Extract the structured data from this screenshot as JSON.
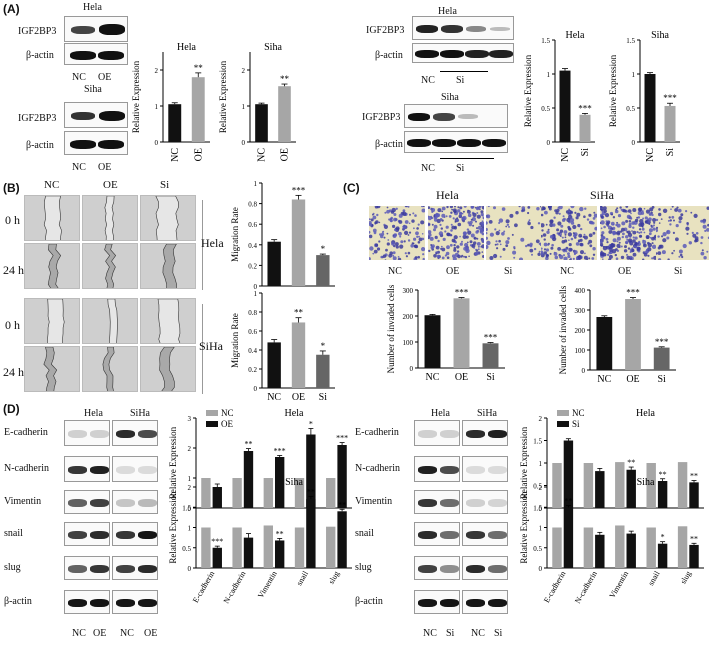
{
  "panels": {
    "A": {
      "label": "(A)",
      "hela": "Hela",
      "siha": "Siha",
      "rows": [
        "IGF2BP3",
        "β-actin"
      ],
      "oe_lanes": [
        "NC",
        "OE"
      ],
      "si_lanes": [
        "NC",
        "Si"
      ]
    },
    "B": {
      "label": "(B)",
      "cols": [
        "NC",
        "OE",
        "Si"
      ],
      "rows": [
        "0 h",
        "24 h"
      ],
      "cells": [
        "Hela",
        "SiHa"
      ]
    },
    "C": {
      "label": "(C)",
      "cells": [
        "Hela",
        "SiHa"
      ],
      "cols": [
        "NC",
        "OE",
        "Si"
      ]
    },
    "D": {
      "label": "(D)",
      "cells": [
        "Hela",
        "SiHa"
      ],
      "rows": [
        "E-cadherin",
        "N-cadherin",
        "Vimentin",
        "snail",
        "slug",
        "β-actin"
      ],
      "oe_lanes": [
        "NC",
        "OE"
      ],
      "si_lanes": [
        "NC",
        "Si"
      ]
    }
  },
  "chart_data": [
    {
      "id": "A-hela-oe",
      "type": "bar",
      "title": "Hela",
      "ylabel": "Relative Expression",
      "categories": [
        "NC",
        "OE"
      ],
      "values": [
        1.05,
        1.8
      ],
      "errors": [
        0.04,
        0.12
      ],
      "sig": [
        "",
        "**"
      ],
      "ylim": [
        0,
        2.5
      ],
      "colors": [
        "#111111",
        "#a6a6a6"
      ]
    },
    {
      "id": "A-siha-oe",
      "type": "bar",
      "title": "Siha",
      "ylabel": "Relative Expression",
      "categories": [
        "NC",
        "OE"
      ],
      "values": [
        1.05,
        1.55
      ],
      "errors": [
        0.03,
        0.06
      ],
      "sig": [
        "",
        "**"
      ],
      "ylim": [
        0,
        2.5
      ],
      "colors": [
        "#111111",
        "#a6a6a6"
      ]
    },
    {
      "id": "A-hela-si",
      "type": "bar",
      "title": "Hela",
      "ylabel": "Relative Expression",
      "categories": [
        "NC",
        "Si"
      ],
      "values": [
        1.05,
        0.4
      ],
      "errors": [
        0.03,
        0.02
      ],
      "sig": [
        "",
        "***"
      ],
      "ylim": [
        0,
        1.5
      ],
      "colors": [
        "#111111",
        "#a6a6a6"
      ]
    },
    {
      "id": "A-siha-si",
      "type": "bar",
      "title": "Siha",
      "ylabel": "Relative Expression",
      "categories": [
        "NC",
        "Si"
      ],
      "values": [
        1.0,
        0.53
      ],
      "errors": [
        0.02,
        0.04
      ],
      "sig": [
        "",
        "***"
      ],
      "ylim": [
        0,
        1.5
      ],
      "colors": [
        "#111111",
        "#a6a6a6"
      ]
    },
    {
      "id": "B-hela",
      "type": "bar",
      "title": "",
      "ylabel": "Migration Rate",
      "categories": [
        "NC",
        "OE",
        "Si"
      ],
      "values": [
        0.43,
        0.84,
        0.3
      ],
      "errors": [
        0.02,
        0.04,
        0.01
      ],
      "sig": [
        "",
        "***",
        "*"
      ],
      "ylim": [
        0,
        1.0
      ],
      "yticks": [
        0.0,
        0.2,
        0.4,
        0.6,
        0.8,
        1.0
      ],
      "xticks": false,
      "colors": [
        "#111111",
        "#a6a6a6",
        "#666666"
      ]
    },
    {
      "id": "B-siha",
      "type": "bar",
      "title": "",
      "ylabel": "Migration Rate",
      "categories": [
        "NC",
        "OE",
        "Si"
      ],
      "values": [
        0.48,
        0.69,
        0.35
      ],
      "errors": [
        0.03,
        0.05,
        0.04
      ],
      "sig": [
        "",
        "**",
        "*"
      ],
      "ylim": [
        0,
        1.0
      ],
      "yticks": [
        0.0,
        0.2,
        0.4,
        0.6,
        0.8,
        1.0
      ],
      "xticks": true,
      "colors": [
        "#111111",
        "#a6a6a6",
        "#666666"
      ]
    },
    {
      "id": "C-hela",
      "type": "bar",
      "title": "",
      "ylabel": "Number of invaded cells",
      "categories": [
        "NC",
        "OE",
        "Si"
      ],
      "values": [
        203,
        268,
        95
      ],
      "errors": [
        3,
        3,
        3
      ],
      "sig": [
        "",
        "***",
        "***"
      ],
      "ylim": [
        0,
        300
      ],
      "yticks": [
        0,
        100,
        200,
        300
      ],
      "colors": [
        "#111111",
        "#a6a6a6",
        "#666666"
      ]
    },
    {
      "id": "C-siha",
      "type": "bar",
      "title": "",
      "ylabel": "Number of invaded cells",
      "categories": [
        "NC",
        "OE",
        "Si"
      ],
      "values": [
        265,
        355,
        112
      ],
      "errors": [
        6,
        7,
        4
      ],
      "sig": [
        "",
        "***",
        "***"
      ],
      "ylim": [
        0,
        400
      ],
      "yticks": [
        0,
        100,
        200,
        300,
        400
      ],
      "colors": [
        "#111111",
        "#a6a6a6",
        "#666666"
      ]
    },
    {
      "id": "D-hela-oe",
      "type": "grouped-bar",
      "title": "Hela",
      "ylabel": "Relative Expression",
      "categories": [
        "E-cadherin",
        "N-cadherin",
        "Vimentin",
        "snail",
        "slug"
      ],
      "series": [
        {
          "name": "NC",
          "values": [
            1.0,
            1.0,
            1.0,
            1.0,
            1.0
          ],
          "color": "#a6a6a6"
        },
        {
          "name": "OE",
          "values": [
            0.7,
            1.9,
            1.7,
            2.45,
            2.1
          ],
          "color": "#111111"
        }
      ],
      "errors": [
        0.1,
        0.08,
        0.05,
        0.2,
        0.08
      ],
      "sig": [
        "",
        "**",
        "***",
        "*",
        "***"
      ],
      "ylim": [
        0,
        3.0
      ],
      "yticks": [
        0,
        1,
        2,
        3
      ],
      "xticks": false
    },
    {
      "id": "D-siha-oe",
      "type": "grouped-bar",
      "title": "Siha",
      "ylabel": "Relative Expression",
      "categories": [
        "E-cadherin",
        "N-cadherin",
        "Vimentin",
        "snail",
        "slug"
      ],
      "series": [
        {
          "name": "NC",
          "values": [
            1.0,
            1.0,
            1.05,
            1.0,
            1.02
          ],
          "color": "#a6a6a6"
        },
        {
          "name": "OE",
          "values": [
            0.5,
            0.75,
            0.68,
            1.7,
            1.4
          ],
          "color": "#111111"
        }
      ],
      "errors": [
        0.04,
        0.1,
        0.05,
        0.07,
        0.05
      ],
      "sig": [
        "***",
        "",
        "**",
        "**",
        "**"
      ],
      "ylim": [
        0,
        2.0
      ],
      "yticks": [
        0.0,
        0.5,
        1.0,
        1.5,
        2.0
      ],
      "xticks": true
    },
    {
      "id": "D-hela-si",
      "type": "grouped-bar",
      "title": "Hela",
      "ylabel": "Relative Expression",
      "categories": [
        "E-cadherin",
        "N-cadherin",
        "Vimentin",
        "snail",
        "slug"
      ],
      "series": [
        {
          "name": "NC",
          "values": [
            1.0,
            1.0,
            1.02,
            1.0,
            1.02
          ],
          "color": "#a6a6a6"
        },
        {
          "name": "Si",
          "values": [
            1.5,
            0.82,
            0.85,
            0.6,
            0.57
          ],
          "color": "#111111"
        }
      ],
      "errors": [
        0.04,
        0.06,
        0.06,
        0.05,
        0.04
      ],
      "sig": [
        "",
        "",
        "**",
        "**",
        "**"
      ],
      "ylim": [
        0,
        2.0
      ],
      "yticks": [
        0.0,
        0.5,
        1.0,
        1.5,
        2.0
      ],
      "xticks": false
    },
    {
      "id": "D-siha-si",
      "type": "grouped-bar",
      "title": "Siha",
      "ylabel": "Relative Expression",
      "categories": [
        "E-cadherin",
        "N-cadherin",
        "Vimentin",
        "snail",
        "slug"
      ],
      "series": [
        {
          "name": "NC",
          "values": [
            1.0,
            1.0,
            1.05,
            1.0,
            1.03
          ],
          "color": "#a6a6a6"
        },
        {
          "name": "Si",
          "values": [
            1.5,
            0.82,
            0.85,
            0.6,
            0.57
          ],
          "color": "#111111"
        }
      ],
      "errors": [
        0.04,
        0.06,
        0.06,
        0.05,
        0.04
      ],
      "sig": [
        "**",
        "",
        "",
        "*",
        "**"
      ],
      "ylim": [
        0,
        2.0
      ],
      "yticks": [
        0.0,
        0.5,
        1.0,
        1.5,
        2.0
      ],
      "xticks": true
    }
  ]
}
